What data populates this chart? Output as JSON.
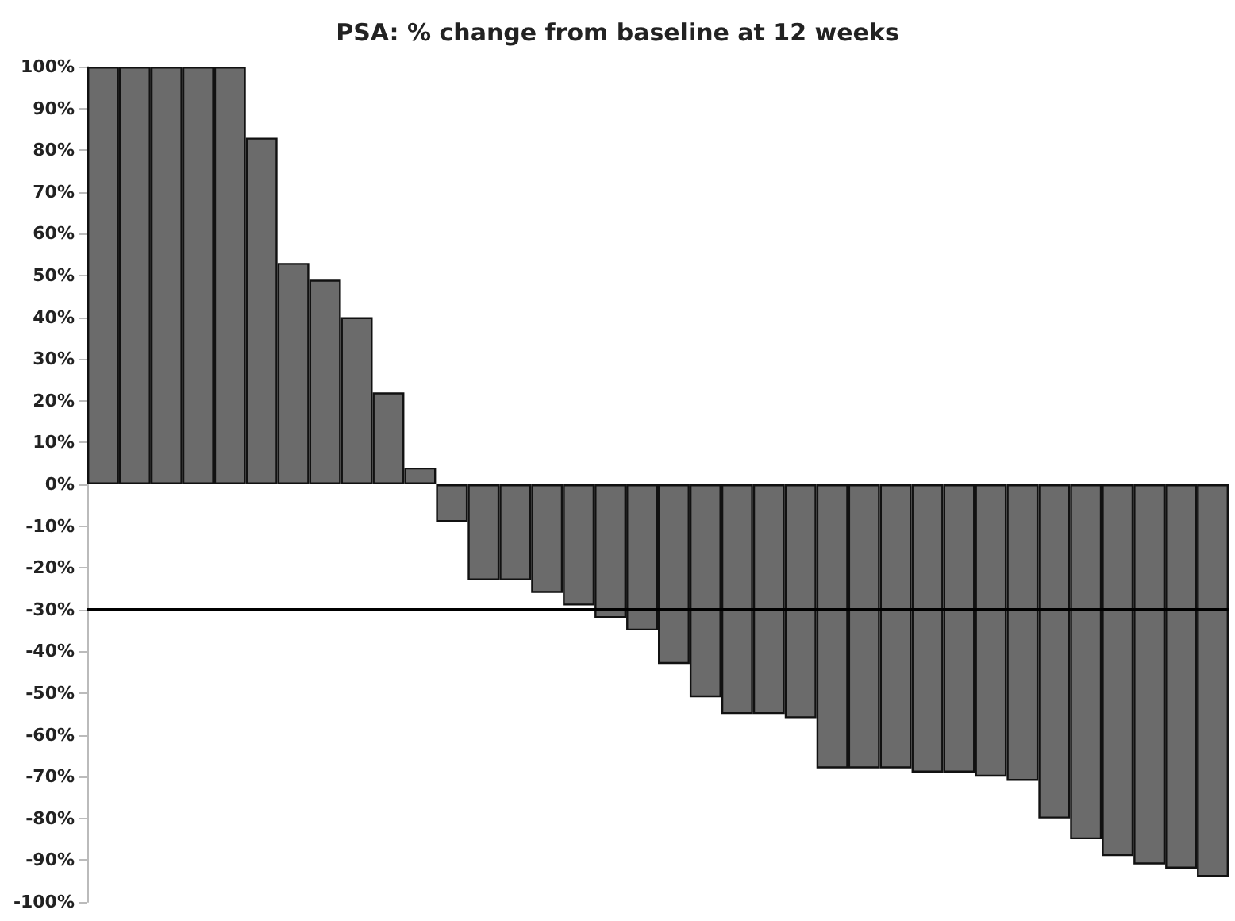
{
  "chart_data": {
    "type": "bar",
    "title": "PSA: % change from baseline at 12 weeks",
    "categories": [
      null,
      null,
      null,
      null,
      null,
      null,
      null,
      null,
      null,
      null,
      null,
      null,
      null,
      null,
      null,
      null,
      null,
      null,
      null,
      null,
      null,
      null,
      null,
      null,
      null,
      null,
      null,
      null,
      null,
      null,
      null,
      null,
      null,
      null,
      null,
      null
    ],
    "values": [
      100,
      100,
      100,
      100,
      100,
      83,
      53,
      49,
      40,
      22,
      4,
      -9,
      -23,
      -23,
      -26,
      -29,
      -32,
      -35,
      -43,
      -51,
      -55,
      -55,
      -56,
      -68,
      -68,
      -68,
      -69,
      -69,
      -70,
      -71,
      -80,
      -85,
      -89,
      -91,
      -92,
      -94
    ],
    "color": "#6b6b6b",
    "ylim": [
      -100,
      100
    ],
    "yticks": [
      {
        "value": -100,
        "label": "-100%"
      },
      {
        "value": -90,
        "label": "-90%"
      },
      {
        "value": -80,
        "label": "-80%"
      },
      {
        "value": -70,
        "label": "-70%"
      },
      {
        "value": -60,
        "label": "-60%"
      },
      {
        "value": -50,
        "label": "-50%"
      },
      {
        "value": -40,
        "label": "-40%"
      },
      {
        "value": -30,
        "label": "-30%"
      },
      {
        "value": -20,
        "label": "-20%"
      },
      {
        "value": -10,
        "label": "-10%"
      },
      {
        "value": 0,
        "label": "0%"
      },
      {
        "value": 10,
        "label": "10%"
      },
      {
        "value": 20,
        "label": "20%"
      },
      {
        "value": 30,
        "label": "30%"
      },
      {
        "value": 40,
        "label": "40%"
      },
      {
        "value": 50,
        "label": "50%"
      },
      {
        "value": 60,
        "label": "60%"
      },
      {
        "value": 70,
        "label": "70%"
      },
      {
        "value": 80,
        "label": "80%"
      },
      {
        "value": 90,
        "label": "90%"
      },
      {
        "value": 100,
        "label": "100%"
      }
    ],
    "ref_lines": [
      {
        "axis": "y",
        "value": -30,
        "color": "#000000",
        "line_style": "solid"
      }
    ],
    "grid": false
  }
}
